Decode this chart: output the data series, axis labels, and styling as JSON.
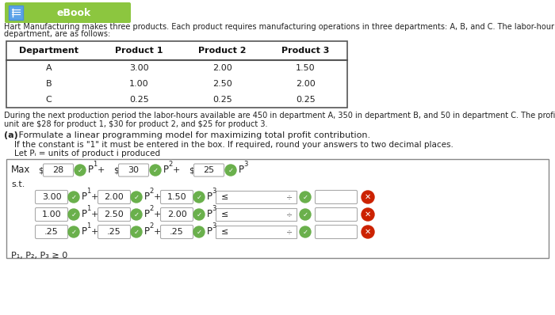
{
  "bg_color": "#ffffff",
  "ebook_btn_color": "#8cc63f",
  "ebook_btn_text": "eBook",
  "ebook_btn_text_color": "#ffffff",
  "title_text1": "Hart Manufacturing makes three products. Each product requires manufacturing operations in three departments: A, B, and C. The labor-hour requirements,",
  "title_text2": "department, are as follows:",
  "table_headers": [
    "Department",
    "Product 1",
    "Product 2",
    "Product 3"
  ],
  "table_rows": [
    [
      "A",
      "3.00",
      "2.00",
      "1.50"
    ],
    [
      "B",
      "1.00",
      "2.50",
      "2.00"
    ],
    [
      "C",
      "0.25",
      "0.25",
      "0.25"
    ]
  ],
  "para_text1": "During the next production period the labor-hours available are 450 in department A, 350 in department B, and 50 in department C. The profit contributions p",
  "para_text2": "unit are $28 for product 1, $30 for product 2, and $25 for product 3.",
  "part_a_label": "(a)",
  "part_a_text": " Formulate a linear programming model for maximizing total profit contribution.",
  "instruction1": "    If the constant is \"1\" it must be entered in the box. If required, round your answers to two decimal places.",
  "instruction2": "    Let Pᵢ = units of product i produced",
  "max_label": "Max",
  "max_dollar": "$",
  "max_vals": [
    "28",
    "30",
    "25"
  ],
  "st_label": "s.t.",
  "constraint_rows": [
    [
      "3.00",
      "2.00",
      "1.50"
    ],
    [
      "1.00",
      "2.50",
      "2.00"
    ],
    [
      ".25",
      ".25",
      ".25"
    ]
  ],
  "inequality": "≤",
  "non_neg": "P₁, P₂, P₃ ≥ 0",
  "check_color": "#6ab04c",
  "x_color": "#cc2200",
  "box_border_color": "#aaaaaa",
  "table_border_color": "#555555",
  "text_color": "#222222",
  "lp_border_color": "#888888"
}
